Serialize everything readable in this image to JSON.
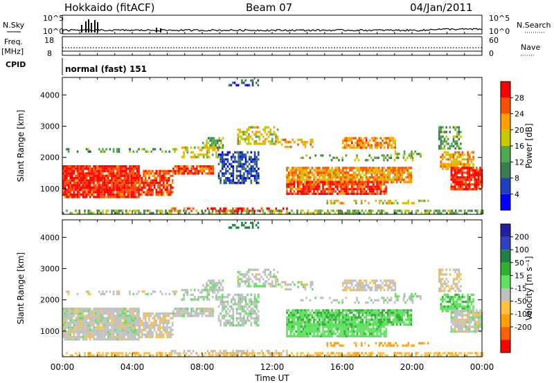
{
  "header": {
    "station": "Hokkaido (fitACF)",
    "beam": "Beam 07",
    "date": "04/Jan/2011"
  },
  "strip": {
    "nsky_label": "N.Sky",
    "nsearch_label": "N.Search",
    "freq_label": "Freq.",
    "freq_unit": "[MHz]",
    "nave_label": "Nave",
    "cpid_label": "CPID",
    "cpid_value": "normal (fast) 151",
    "noise_ticks": [
      "10^5",
      "10^0"
    ],
    "freq_ticks": [
      "18",
      "8"
    ],
    "nave_ticks": [
      "60",
      "0"
    ]
  },
  "chart_data": [
    {
      "type": "heatmap",
      "name_panel": "power",
      "ylabel": "Slant Range [km]",
      "xlabel": "",
      "x_ticks": [
        "00:00",
        "04:00",
        "08:00",
        "12:00",
        "16:00",
        "20:00",
        "00:00"
      ],
      "y_ticks": [
        "1000",
        "2000",
        "3000",
        "4000"
      ],
      "xlim_hours": [
        0,
        24
      ],
      "ylim": [
        180,
        4560
      ],
      "colorbar": {
        "label": "Power [dB]",
        "ticks": [
          "28",
          "24",
          "20",
          "16",
          "12",
          "8",
          "4"
        ],
        "range": [
          0,
          30
        ],
        "colors": [
          "#0000ff",
          "#1f3fbf",
          "#3c7c4f",
          "#4fa84f",
          "#c8c800",
          "#ffa000",
          "#ff5000",
          "#ff0000"
        ]
      }
    },
    {
      "type": "heatmap",
      "name_panel": "velocity",
      "ylabel": "Slant Range [km]",
      "xlabel": "Time UT",
      "x_ticks": [
        "00:00",
        "04:00",
        "08:00",
        "12:00",
        "16:00",
        "20:00",
        "00:00"
      ],
      "y_ticks": [
        "1000",
        "2000",
        "3000",
        "4000"
      ],
      "xlim_hours": [
        0,
        24
      ],
      "ylim": [
        180,
        4560
      ],
      "colorbar": {
        "label": "Velocity [m s⁻¹]",
        "ticks": [
          "200",
          "100",
          "50",
          "15",
          "-15",
          "-50",
          "-100",
          "-200"
        ],
        "range": [
          -250,
          250
        ],
        "colors": [
          "#ff0000",
          "#ff6000",
          "#ffa000",
          "#ffc040",
          "#c0c0c0",
          "#60e060",
          "#30b030",
          "#208040",
          "#3040c0",
          "#2020a0"
        ]
      }
    }
  ]
}
